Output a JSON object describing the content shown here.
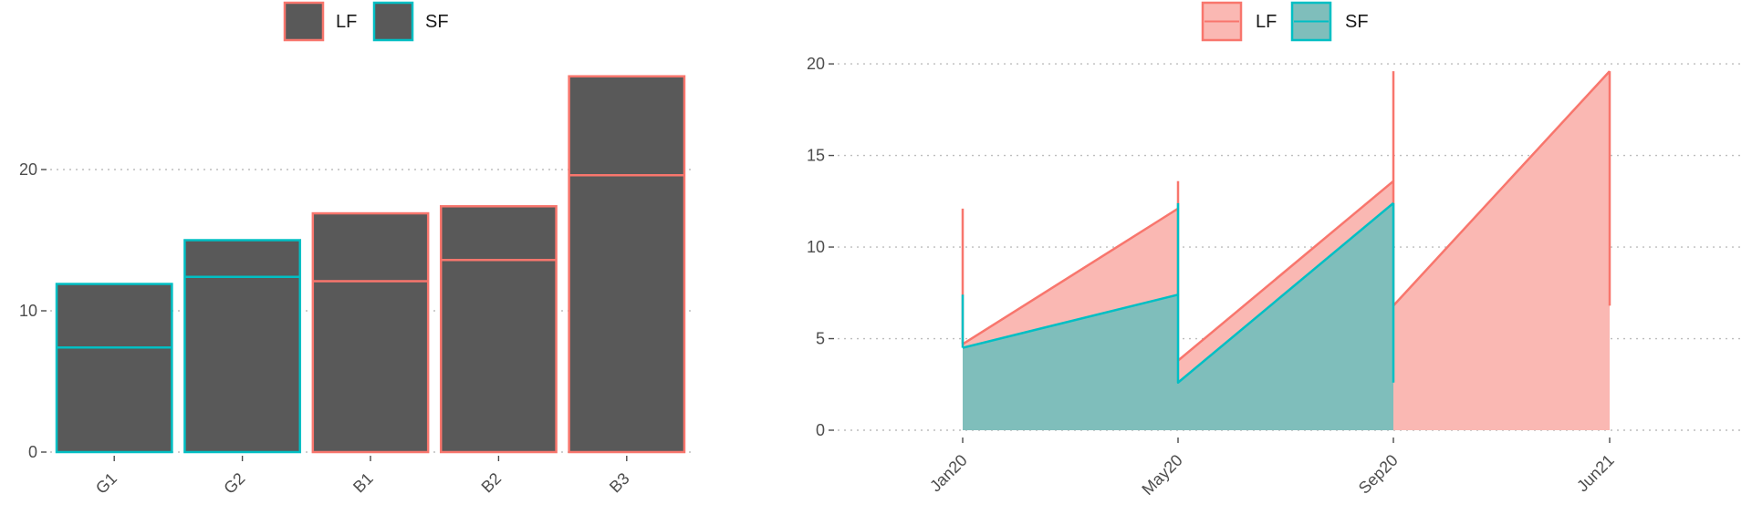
{
  "chart_data": [
    {
      "type": "bar",
      "title": "",
      "xlabel": "",
      "ylabel": "",
      "categories": [
        "G1",
        "G2",
        "B1",
        "B2",
        "B3"
      ],
      "ylim": [
        0,
        28
      ],
      "yticks": [
        0,
        10,
        20
      ],
      "grid": true,
      "legend": {
        "position": "top",
        "entries": [
          "LF",
          "SF"
        ]
      },
      "series": [
        {
          "name": "SF",
          "values": [
            7.4,
            12.4,
            0,
            0,
            0
          ]
        },
        {
          "name": "LF",
          "values": [
            4.5,
            2.6,
            16.9,
            17.4,
            26.6
          ]
        }
      ],
      "inner_line": [
        7.4,
        12.4,
        12.1,
        13.6,
        19.6
      ],
      "outline_series": [
        "SF",
        "SF",
        "LF",
        "LF",
        "LF"
      ],
      "fill_color": "#595959",
      "colors": {
        "LF": "#f8766d",
        "SF": "#00bfc4"
      }
    },
    {
      "type": "area",
      "title": "",
      "xlabel": "",
      "ylabel": "",
      "x_ticks": [
        "Jan20",
        "May20",
        "Sep20",
        "Jun21"
      ],
      "ylim": [
        0,
        21
      ],
      "yticks": [
        0,
        5,
        10,
        15,
        20
      ],
      "grid": true,
      "legend": {
        "position": "top",
        "entries": [
          "LF",
          "SF"
        ]
      },
      "series": [
        {
          "name": "LF",
          "points": [
            [
              "Jan20",
              4.7
            ],
            [
              "May20",
              12.1
            ],
            [
              "May20",
              3.8
            ],
            [
              "Sep20",
              13.6
            ],
            [
              "Sep20",
              6.8
            ],
            [
              "Jun21",
              19.6
            ]
          ],
          "spikes": [
            [
              "Jan20",
              12.1
            ],
            [
              "May20",
              13.6
            ],
            [
              "Sep20",
              19.6
            ],
            [
              "Jun21",
              6.8
            ]
          ]
        },
        {
          "name": "SF",
          "points": [
            [
              "Jan20",
              4.5
            ],
            [
              "May20",
              7.4
            ],
            [
              "May20",
              2.6
            ],
            [
              "Sep20",
              12.4
            ]
          ],
          "spikes": [
            [
              "Jan20",
              7.4
            ],
            [
              "May20",
              12.4
            ],
            [
              "Sep20",
              2.6
            ]
          ]
        }
      ],
      "colors": {
        "LF": "#f8766d",
        "SF": "#00bfc4",
        "LF_fill": "#fab8b3",
        "SF_fill": "#7fbebb"
      }
    }
  ]
}
